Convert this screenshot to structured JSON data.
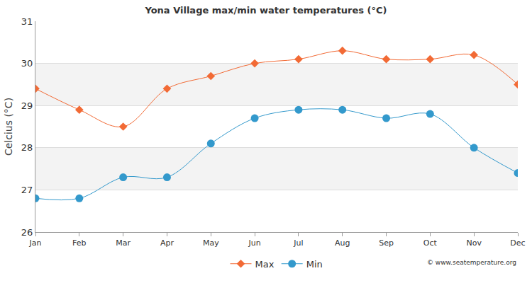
{
  "chart_data": {
    "type": "line",
    "title": "Yona Village max/min water temperatures (°C)",
    "y_label": "Celcius (°C)",
    "categories": [
      "Jan",
      "Feb",
      "Mar",
      "Apr",
      "May",
      "Jun",
      "Jul",
      "Aug",
      "Sep",
      "Oct",
      "Nov",
      "Dec"
    ],
    "series": [
      {
        "name": "Max",
        "color": "#f26a35",
        "marker": "diamond",
        "line_style": "solid",
        "values": [
          29.4,
          28.9,
          28.5,
          29.4,
          29.7,
          30.0,
          30.1,
          30.3,
          30.1,
          30.1,
          30.2,
          29.5
        ]
      },
      {
        "name": "Min",
        "color": "#3399cc",
        "marker": "circle",
        "line_style": "solid",
        "values": [
          26.8,
          26.8,
          27.3,
          27.3,
          28.1,
          28.7,
          28.9,
          28.9,
          28.7,
          28.8,
          28.0,
          27.4
        ]
      }
    ],
    "ylim": [
      26,
      31
    ],
    "yticks": [
      26,
      27,
      28,
      29,
      30,
      31
    ],
    "grid": true,
    "legend": "bottom",
    "annotations": [
      "© www.seatemperature.org"
    ]
  }
}
